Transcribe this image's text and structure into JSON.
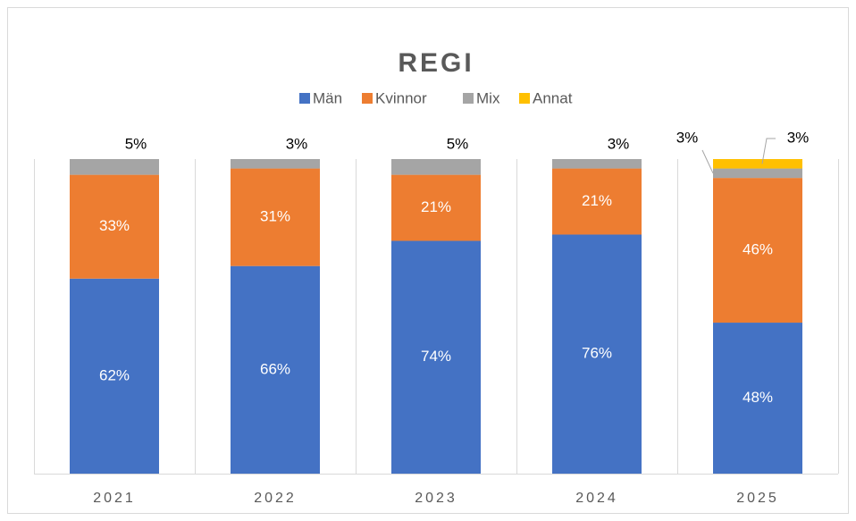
{
  "chart_data": {
    "type": "stacked_bar",
    "title": "REGI",
    "categories": [
      "2021",
      "2022",
      "2023",
      "2024",
      "2025"
    ],
    "series": [
      {
        "name": "Män",
        "color": "#4472c4",
        "values": [
          62,
          66,
          74,
          76,
          48
        ],
        "value_labels": [
          "62%",
          "66%",
          "74%",
          "76%",
          "48%"
        ]
      },
      {
        "name": "Kvinnor",
        "color": "#ed7d31",
        "values": [
          33,
          31,
          21,
          21,
          46
        ],
        "value_labels": [
          "33%",
          "31%",
          "21%",
          "21%",
          "46%"
        ]
      },
      {
        "name": "Mix",
        "color": "#a5a5a5",
        "values": [
          5,
          3,
          5,
          3,
          3
        ],
        "value_labels": [
          "5%",
          "3%",
          "5%",
          "3%",
          "3%"
        ]
      },
      {
        "name": "Annat",
        "color": "#ffc000",
        "values": [
          0,
          0,
          0,
          0,
          3
        ],
        "value_labels": [
          null,
          null,
          null,
          null,
          "3%"
        ]
      }
    ],
    "legend": "top"
  }
}
